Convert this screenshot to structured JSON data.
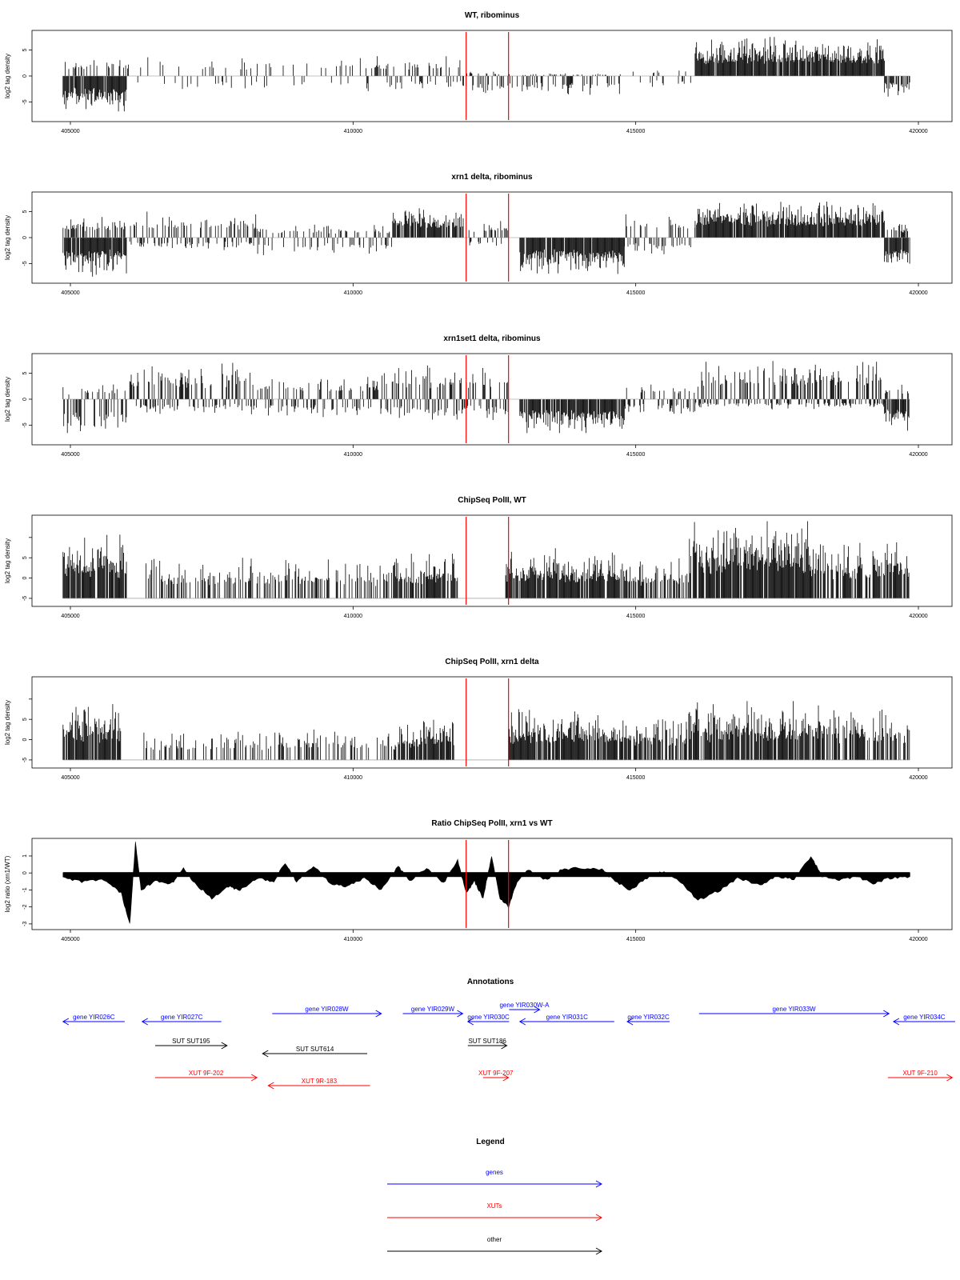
{
  "chart_data": [
    {
      "type": "bar",
      "title": "WT, ribominus",
      "ylabel": "log2 tag density",
      "xlim": [
        405000,
        420000
      ],
      "ylim": [
        -8,
        8
      ],
      "yticks": [
        -5,
        0,
        5
      ],
      "xticks": [
        405000,
        410000,
        415000,
        420000
      ],
      "markers": [
        412000,
        412750
      ],
      "segments": [
        {
          "start": 404870,
          "end": 406000,
          "max": 0,
          "min": -7.0,
          "density": 0.9
        },
        {
          "start": 404870,
          "end": 406000,
          "max": 4.0,
          "min": 0,
          "density": 0.25
        },
        {
          "start": 406000,
          "end": 410400,
          "max": 3.6,
          "min": -3.0,
          "density": 0.18
        },
        {
          "start": 410400,
          "end": 412000,
          "max": 3.8,
          "min": -3.0,
          "density": 0.4
        },
        {
          "start": 412000,
          "end": 412750,
          "max": 1.0,
          "min": -4.5,
          "density": 0.5
        },
        {
          "start": 412750,
          "end": 414800,
          "max": 0.5,
          "min": -4.0,
          "density": 0.6
        },
        {
          "start": 414800,
          "end": 416050,
          "max": 1.5,
          "min": -2.5,
          "density": 0.2
        },
        {
          "start": 416050,
          "end": 419400,
          "max": 7.5,
          "min": 0,
          "density": 0.95
        },
        {
          "start": 419400,
          "end": 419850,
          "max": 0,
          "min": -4.0,
          "density": 0.8
        }
      ]
    },
    {
      "type": "bar",
      "title": "xrn1 delta, ribominus",
      "ylabel": "log2 tag density",
      "xlim": [
        405000,
        420000
      ],
      "ylim": [
        -8,
        8
      ],
      "yticks": [
        -5,
        0,
        5
      ],
      "xticks": [
        405000,
        410000,
        415000,
        420000
      ],
      "markers": [
        412000,
        412750
      ],
      "segments": [
        {
          "start": 404870,
          "end": 406000,
          "max": 0,
          "min": -7.5,
          "density": 0.9
        },
        {
          "start": 404870,
          "end": 406000,
          "max": 4.0,
          "min": 0,
          "density": 0.5
        },
        {
          "start": 406050,
          "end": 408300,
          "max": 5.0,
          "min": -2.5,
          "density": 0.55
        },
        {
          "start": 408300,
          "end": 410700,
          "max": 2.5,
          "min": -3.5,
          "density": 0.45
        },
        {
          "start": 410700,
          "end": 411950,
          "max": 6.0,
          "min": 0,
          "density": 0.8
        },
        {
          "start": 412050,
          "end": 412750,
          "max": 3.5,
          "min": -2.0,
          "density": 0.5
        },
        {
          "start": 412950,
          "end": 414800,
          "max": 0,
          "min": -7.0,
          "density": 0.95
        },
        {
          "start": 414800,
          "end": 416050,
          "max": 4.5,
          "min": -3.5,
          "density": 0.5
        },
        {
          "start": 416050,
          "end": 419400,
          "max": 7.0,
          "min": 0,
          "density": 0.95
        },
        {
          "start": 419400,
          "end": 419850,
          "max": 0,
          "min": -6.0,
          "density": 0.85
        },
        {
          "start": 419400,
          "end": 419850,
          "max": 3.0,
          "min": 0,
          "density": 0.4
        }
      ]
    },
    {
      "type": "bar",
      "title": "xrn1set1 delta, ribominus",
      "ylabel": "log2 tag density",
      "xlim": [
        405000,
        420000
      ],
      "ylim": [
        -8,
        8
      ],
      "yticks": [
        -5,
        0,
        5
      ],
      "xticks": [
        405000,
        410000,
        415000,
        420000
      ],
      "markers": [
        412000,
        412750
      ],
      "segments": [
        {
          "start": 404870,
          "end": 406000,
          "max": 3.0,
          "min": -7.5,
          "density": 0.6
        },
        {
          "start": 406050,
          "end": 408300,
          "max": 7.0,
          "min": -3.0,
          "density": 0.6
        },
        {
          "start": 408300,
          "end": 410500,
          "max": 4.5,
          "min": -3.5,
          "density": 0.5
        },
        {
          "start": 410500,
          "end": 412750,
          "max": 6.5,
          "min": -4.0,
          "density": 0.6
        },
        {
          "start": 412950,
          "end": 414800,
          "max": 0,
          "min": -6.5,
          "density": 0.9
        },
        {
          "start": 414800,
          "end": 416050,
          "max": 3.5,
          "min": -3.0,
          "density": 0.5
        },
        {
          "start": 416050,
          "end": 419400,
          "max": 7.5,
          "min": -2.0,
          "density": 0.75
        },
        {
          "start": 419400,
          "end": 419850,
          "max": 0,
          "min": -6.5,
          "density": 0.85
        },
        {
          "start": 419400,
          "end": 419850,
          "max": 3.0,
          "min": 0,
          "density": 0.3
        }
      ]
    },
    {
      "type": "bar",
      "title": "ChipSeq PolII, WT",
      "ylabel": "log2 tag density",
      "xlim": [
        405000,
        420000
      ],
      "ylim": [
        -0.2,
        3.9
      ],
      "yticks": [
        0,
        1,
        2,
        3
      ],
      "xticks": [
        405000,
        410000,
        415000,
        420000
      ],
      "markers": [
        412000,
        412750
      ],
      "segments": [
        {
          "start": 404870,
          "end": 406000,
          "max": 3.2,
          "min": 0,
          "density": 0.95
        },
        {
          "start": 406300,
          "end": 410700,
          "max": 2.0,
          "min": 0,
          "density": 0.35
        },
        {
          "start": 410700,
          "end": 411850,
          "max": 2.3,
          "min": 0,
          "density": 0.8
        },
        {
          "start": 412700,
          "end": 414850,
          "max": 2.5,
          "min": 0,
          "density": 0.9
        },
        {
          "start": 414850,
          "end": 415950,
          "max": 2.0,
          "min": 0,
          "density": 0.55
        },
        {
          "start": 415950,
          "end": 418100,
          "max": 3.8,
          "min": 0,
          "density": 0.9
        },
        {
          "start": 418100,
          "end": 419850,
          "max": 2.9,
          "min": 0,
          "density": 0.7
        }
      ]
    },
    {
      "type": "bar",
      "title": "ChipSeq PolII, xrn1 delta",
      "ylabel": "log2 tag density",
      "xlim": [
        405000,
        420000
      ],
      "ylim": [
        -0.2,
        3.9
      ],
      "yticks": [
        0,
        1,
        2,
        3
      ],
      "xticks": [
        405000,
        410000,
        415000,
        420000
      ],
      "markers": [
        412000,
        412750
      ],
      "segments": [
        {
          "start": 404870,
          "end": 405900,
          "max": 2.8,
          "min": 0,
          "density": 0.95
        },
        {
          "start": 406300,
          "end": 410800,
          "max": 1.5,
          "min": 0,
          "density": 0.3
        },
        {
          "start": 410800,
          "end": 411800,
          "max": 2.0,
          "min": 0,
          "density": 0.8
        },
        {
          "start": 412750,
          "end": 414850,
          "max": 2.5,
          "min": 0,
          "density": 0.85
        },
        {
          "start": 414850,
          "end": 415900,
          "max": 2.3,
          "min": 0,
          "density": 0.6
        },
        {
          "start": 415900,
          "end": 418300,
          "max": 2.9,
          "min": 0,
          "density": 0.85
        },
        {
          "start": 418300,
          "end": 419850,
          "max": 2.6,
          "min": 0,
          "density": 0.6
        }
      ]
    },
    {
      "type": "area",
      "title": "Ratio ChipSeq PolII, xrn1 vs WT",
      "ylabel": "log2 ratio (xrn1/WT)",
      "xlim": [
        405000,
        420000
      ],
      "ylim": [
        -3.1,
        1.8
      ],
      "yticks": [
        -3,
        -2,
        -1,
        0,
        1
      ],
      "xticks": [
        405000,
        410000,
        415000,
        420000
      ],
      "markers": [
        412000,
        412750
      ],
      "profile": [
        [
          404870,
          -0.3
        ],
        [
          405200,
          -0.5
        ],
        [
          405600,
          -0.4
        ],
        [
          405900,
          -1.2
        ],
        [
          406050,
          -3.0
        ],
        [
          406150,
          1.8
        ],
        [
          406250,
          -1.0
        ],
        [
          406500,
          -0.5
        ],
        [
          406800,
          -0.6
        ],
        [
          407000,
          0.3
        ],
        [
          407200,
          -0.6
        ],
        [
          407500,
          -1.5
        ],
        [
          407800,
          -0.8
        ],
        [
          408000,
          -1.0
        ],
        [
          408300,
          -0.3
        ],
        [
          408600,
          -0.5
        ],
        [
          408800,
          0.6
        ],
        [
          409000,
          -0.5
        ],
        [
          409300,
          0.4
        ],
        [
          409600,
          -0.6
        ],
        [
          409900,
          -0.8
        ],
        [
          410200,
          -0.3
        ],
        [
          410500,
          -1.0
        ],
        [
          410800,
          0.4
        ],
        [
          411000,
          -0.5
        ],
        [
          411300,
          0.3
        ],
        [
          411600,
          -0.6
        ],
        [
          411850,
          0.8
        ],
        [
          412000,
          -1.2
        ],
        [
          412150,
          -0.5
        ],
        [
          412300,
          -1.5
        ],
        [
          412450,
          1.0
        ],
        [
          412600,
          -1.5
        ],
        [
          412750,
          -2.0
        ],
        [
          412900,
          -0.5
        ],
        [
          413100,
          0.2
        ],
        [
          413400,
          -0.4
        ],
        [
          413700,
          0.2
        ],
        [
          414000,
          0.3
        ],
        [
          414400,
          0.2
        ],
        [
          414600,
          -0.4
        ],
        [
          414900,
          -1.0
        ],
        [
          415200,
          -0.3
        ],
        [
          415500,
          0.1
        ],
        [
          415800,
          -0.6
        ],
        [
          416100,
          -1.6
        ],
        [
          416500,
          -1.0
        ],
        [
          416800,
          -0.3
        ],
        [
          417200,
          -0.7
        ],
        [
          417500,
          -0.2
        ],
        [
          417800,
          -0.4
        ],
        [
          418100,
          1.0
        ],
        [
          418300,
          -0.2
        ],
        [
          418600,
          -0.4
        ],
        [
          418900,
          -0.2
        ],
        [
          419200,
          -0.6
        ],
        [
          419500,
          -0.3
        ],
        [
          419850,
          -0.2
        ]
      ]
    }
  ],
  "axis": {
    "xtick_labels": [
      "405000",
      "410000",
      "415000",
      "420000"
    ],
    "ytick_labels_reads": [
      "-5",
      "0",
      "5"
    ],
    "ytick_labels_chip": [
      "0",
      "1",
      "2",
      "3"
    ],
    "ytick_labels_ratio": [
      "-3",
      "-2",
      "-1",
      "0",
      "1"
    ]
  },
  "annotations": {
    "title": "Annotations",
    "features": [
      {
        "label": "gene YIR026C",
        "kind": "gene",
        "start": 404870,
        "end": 405960,
        "strand": "-",
        "row": 0
      },
      {
        "label": "gene YIR027C",
        "kind": "gene",
        "start": 406270,
        "end": 407670,
        "strand": "-",
        "row": 0
      },
      {
        "label": "gene YIR028W",
        "kind": "gene",
        "start": 408570,
        "end": 410500,
        "strand": "+",
        "row": -1
      },
      {
        "label": "gene YIR029W",
        "kind": "gene",
        "start": 410880,
        "end": 411940,
        "strand": "+",
        "row": -1
      },
      {
        "label": "gene YIR030C",
        "kind": "gene",
        "start": 412030,
        "end": 412760,
        "strand": "-",
        "row": 0
      },
      {
        "label": "gene YIR030W-A",
        "kind": "gene",
        "start": 412760,
        "end": 413300,
        "strand": "+",
        "row": -1.5
      },
      {
        "label": "gene YIR031C",
        "kind": "gene",
        "start": 412950,
        "end": 414620,
        "strand": "-",
        "row": 0
      },
      {
        "label": "gene YIR032C",
        "kind": "gene",
        "start": 414850,
        "end": 415600,
        "strand": "-",
        "row": 0
      },
      {
        "label": "gene YIR033W",
        "kind": "gene",
        "start": 416120,
        "end": 419480,
        "strand": "+",
        "row": -1
      },
      {
        "label": "gene YIR034C",
        "kind": "gene",
        "start": 419560,
        "end": 420650,
        "strand": "-",
        "row": 0
      },
      {
        "label": "SUT SUT195",
        "kind": "other",
        "start": 406500,
        "end": 407770,
        "strand": "+",
        "row": 3
      },
      {
        "label": "SUT SUT614",
        "kind": "other",
        "start": 408400,
        "end": 410250,
        "strand": "-",
        "row": 4
      },
      {
        "label": "SUT SUT186",
        "kind": "other",
        "start": 412030,
        "end": 412720,
        "strand": "+",
        "row": 3
      },
      {
        "label": "XUT 9F-202",
        "kind": "xut",
        "start": 406500,
        "end": 408300,
        "strand": "+",
        "row": 7
      },
      {
        "label": "XUT 9R-183",
        "kind": "xut",
        "start": 408500,
        "end": 410300,
        "strand": "-",
        "row": 8
      },
      {
        "label": "XUT 9F-207",
        "kind": "xut",
        "start": 412300,
        "end": 412750,
        "strand": "+",
        "row": 7
      },
      {
        "label": "XUT 9F-210",
        "kind": "xut",
        "start": 419460,
        "end": 420600,
        "strand": "+",
        "row": 7
      }
    ]
  },
  "legend": {
    "title": "Legend",
    "entries": [
      {
        "label": "genes",
        "kind": "gene"
      },
      {
        "label": "XUTs",
        "kind": "xut"
      },
      {
        "label": "other",
        "kind": "other"
      }
    ]
  },
  "colors": {
    "gene": "#0000ff",
    "xut": "#ff0000",
    "other": "#000000",
    "marker": "#ff0000",
    "bars": "#000000"
  }
}
